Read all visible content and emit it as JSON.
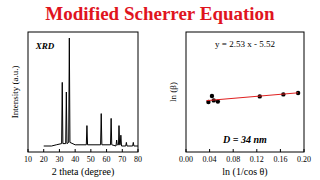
{
  "title": "Modified Scherrer Equation",
  "chart_data": [
    {
      "type": "line",
      "annotations": [
        "XRD"
      ],
      "x_label": "2 theta (degree)",
      "y_label": "Intensity (a.u.)",
      "color": "#000000",
      "x": [
        20,
        25,
        28,
        31.4,
        31.8,
        32.2,
        34.0,
        34.4,
        34.8,
        35.9,
        36.3,
        36.7,
        40,
        47.1,
        47.5,
        47.9,
        56.2,
        56.6,
        57.0,
        62.5,
        62.9,
        63.3,
        66.0,
        66.4,
        66.8,
        67.6,
        67.9,
        68.3,
        68.7,
        69.1,
        69.5,
        72.2,
        72.6,
        73.0,
        76.6,
        77.0,
        77.4,
        80
      ],
      "values": [
        5,
        5,
        6,
        7,
        58,
        7,
        7,
        50,
        7,
        8,
        95,
        8,
        6,
        6,
        22,
        6,
        6,
        32,
        6,
        6,
        28,
        6,
        5,
        10,
        6,
        6,
        22,
        6,
        6,
        14,
        5,
        5,
        8,
        5,
        5,
        8,
        5,
        5
      ],
      "xlim": [
        10,
        80
      ],
      "xticks": [
        10,
        20,
        30,
        40,
        50,
        60,
        70,
        80
      ],
      "ylim": [
        0,
        100
      ],
      "tick_labels": "x"
    },
    {
      "type": "scatter",
      "annotations": [
        "y = 2.53 x - 5.52",
        "D = 34 nm"
      ],
      "x_label": "ln (1/cos θ)",
      "y_label": "ln (β)",
      "series": [
        {
          "type": "scatter",
          "color": "#000000",
          "marker": "circle",
          "x": [
            0.038,
            0.044,
            0.047,
            0.054,
            0.125,
            0.165,
            0.19
          ],
          "values": [
            -5.5,
            -5.2,
            -5.42,
            -5.48,
            -5.22,
            -5.12,
            -5.05
          ]
        },
        {
          "type": "line",
          "color": "#e02020",
          "line_style": "solid",
          "x": [
            0.035,
            0.19
          ],
          "values": [
            -5.43,
            -5.04
          ]
        }
      ],
      "xlim": [
        0,
        0.2
      ],
      "xticks": [
        {
          "value": 0,
          "label": "0.00"
        },
        {
          "value": 0.04,
          "label": "0.04"
        },
        {
          "value": 0.08,
          "label": "0.08"
        },
        {
          "value": 0.12,
          "label": "0.12"
        },
        {
          "value": 0.16,
          "label": "0.16"
        },
        {
          "value": 0.2,
          "label": "0.20"
        }
      ],
      "ylim": [
        -8,
        -2
      ],
      "tick_labels": "x"
    }
  ]
}
